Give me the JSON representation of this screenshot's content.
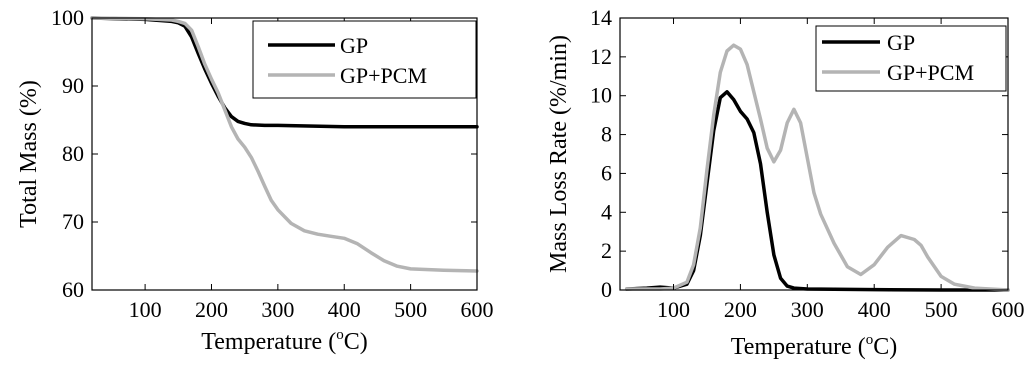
{
  "chart_data": [
    {
      "type": "line",
      "xlabel": "Temperature (",
      "xlabel_sup": "o",
      "xlabel_end": "C)",
      "ylabel": "Total Mass (%)",
      "xlim": [
        20,
        600
      ],
      "ylim": [
        60,
        100
      ],
      "xticks": [
        100,
        200,
        300,
        400,
        500,
        600
      ],
      "yticks": [
        60,
        70,
        80,
        90,
        100
      ],
      "legend_position": "top-right",
      "series": [
        {
          "name": "GP",
          "color": "#000000",
          "x": [
            20,
            100,
            140,
            150,
            160,
            170,
            180,
            190,
            200,
            210,
            220,
            230,
            240,
            250,
            260,
            280,
            300,
            400,
            500,
            600
          ],
          "y": [
            100,
            99.8,
            99.5,
            99.3,
            98.8,
            97.2,
            94.8,
            92.5,
            90.4,
            88.5,
            86.8,
            85.5,
            84.8,
            84.5,
            84.3,
            84.2,
            84.2,
            84.0,
            84.0,
            84.0
          ]
        },
        {
          "name": "GP+PCM",
          "color": "#b4b4b4",
          "x": [
            20,
            100,
            140,
            150,
            160,
            170,
            180,
            190,
            200,
            210,
            220,
            230,
            240,
            250,
            260,
            270,
            280,
            290,
            300,
            320,
            340,
            360,
            380,
            400,
            420,
            440,
            460,
            480,
            500,
            550,
            600
          ],
          "y": [
            100,
            99.9,
            99.7,
            99.5,
            99.2,
            98.2,
            95.8,
            93.2,
            91.0,
            89.0,
            86.5,
            84.0,
            82.2,
            81.0,
            79.5,
            77.5,
            75.3,
            73.2,
            71.8,
            69.8,
            68.7,
            68.2,
            67.9,
            67.6,
            66.8,
            65.5,
            64.3,
            63.5,
            63.1,
            62.9,
            62.8
          ]
        }
      ]
    },
    {
      "type": "line",
      "xlabel": "Temperature (",
      "xlabel_sup": "o",
      "xlabel_end": "C)",
      "ylabel": "Mass Loss Rate (%/min)",
      "xlim": [
        20,
        600
      ],
      "ylim": [
        0,
        14
      ],
      "xticks": [
        100,
        200,
        300,
        400,
        500,
        600
      ],
      "yticks": [
        0,
        2,
        4,
        6,
        8,
        10,
        12,
        14
      ],
      "legend_position": "top-right",
      "series": [
        {
          "name": "GP",
          "color": "#000000",
          "x": [
            30,
            60,
            80,
            100,
            120,
            130,
            140,
            150,
            160,
            170,
            180,
            190,
            200,
            210,
            220,
            230,
            240,
            250,
            260,
            270,
            280,
            300,
            400,
            500,
            600
          ],
          "y": [
            0.05,
            0.1,
            0.15,
            0.1,
            0.3,
            1.0,
            2.8,
            5.5,
            8.2,
            9.9,
            10.2,
            9.8,
            9.2,
            8.8,
            8.1,
            6.5,
            4.0,
            1.8,
            0.6,
            0.2,
            0.1,
            0.05,
            0.02,
            0.0,
            0.0
          ]
        },
        {
          "name": "GP+PCM",
          "color": "#b4b4b4",
          "x": [
            30,
            80,
            100,
            120,
            130,
            140,
            150,
            160,
            170,
            180,
            190,
            200,
            210,
            220,
            230,
            240,
            250,
            260,
            270,
            280,
            290,
            300,
            310,
            320,
            340,
            360,
            380,
            400,
            420,
            440,
            460,
            470,
            480,
            500,
            520,
            550,
            600
          ],
          "y": [
            0.05,
            0.05,
            0.1,
            0.4,
            1.3,
            3.2,
            6.2,
            9.0,
            11.2,
            12.3,
            12.6,
            12.4,
            11.6,
            10.2,
            8.8,
            7.3,
            6.6,
            7.2,
            8.6,
            9.3,
            8.6,
            6.8,
            5.0,
            3.9,
            2.4,
            1.2,
            0.8,
            1.3,
            2.2,
            2.8,
            2.6,
            2.3,
            1.7,
            0.7,
            0.3,
            0.1,
            0.0
          ]
        }
      ]
    }
  ]
}
